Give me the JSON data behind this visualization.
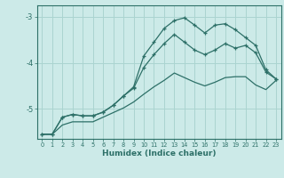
{
  "xlabel": "Humidex (Indice chaleur)",
  "bg_color": "#cceae8",
  "grid_color": "#aad4d0",
  "line_color": "#2d7068",
  "xlim": [
    -0.5,
    23.5
  ],
  "ylim": [
    -5.65,
    -2.75
  ],
  "yticks": [
    -5,
    -4,
    -3
  ],
  "xticks": [
    0,
    1,
    2,
    3,
    4,
    5,
    6,
    7,
    8,
    9,
    10,
    11,
    12,
    13,
    14,
    15,
    16,
    17,
    18,
    19,
    20,
    21,
    22,
    23
  ],
  "series1_x": [
    0,
    1,
    2,
    3,
    4,
    5,
    6,
    7,
    8,
    9,
    10,
    11,
    12,
    13,
    14,
    15,
    16,
    17,
    18,
    19,
    20,
    21,
    22,
    23
  ],
  "series1_y": [
    -5.55,
    -5.55,
    -5.18,
    -5.12,
    -5.15,
    -5.15,
    -5.07,
    -4.92,
    -4.72,
    -4.52,
    -3.85,
    -3.55,
    -3.25,
    -3.08,
    -3.02,
    -3.18,
    -3.35,
    -3.18,
    -3.15,
    -3.28,
    -3.45,
    -3.62,
    -4.15,
    -4.35
  ],
  "series2_x": [
    0,
    1,
    2,
    3,
    4,
    5,
    6,
    7,
    8,
    9,
    10,
    11,
    12,
    13,
    14,
    15,
    16,
    17,
    18,
    19,
    20,
    21,
    22,
    23
  ],
  "series2_y": [
    -5.55,
    -5.55,
    -5.18,
    -5.12,
    -5.15,
    -5.15,
    -5.07,
    -4.92,
    -4.72,
    -4.55,
    -4.1,
    -3.82,
    -3.58,
    -3.38,
    -3.55,
    -3.72,
    -3.82,
    -3.72,
    -3.58,
    -3.68,
    -3.62,
    -3.78,
    -4.2,
    -4.35
  ],
  "series3_x": [
    0,
    1,
    2,
    3,
    4,
    5,
    6,
    7,
    8,
    9,
    10,
    11,
    12,
    13,
    14,
    15,
    16,
    17,
    18,
    19,
    20,
    21,
    22,
    23
  ],
  "series3_y": [
    -5.55,
    -5.55,
    -5.35,
    -5.28,
    -5.28,
    -5.28,
    -5.18,
    -5.08,
    -4.98,
    -4.85,
    -4.68,
    -4.52,
    -4.38,
    -4.22,
    -4.32,
    -4.42,
    -4.5,
    -4.42,
    -4.32,
    -4.3,
    -4.3,
    -4.48,
    -4.58,
    -4.38
  ]
}
